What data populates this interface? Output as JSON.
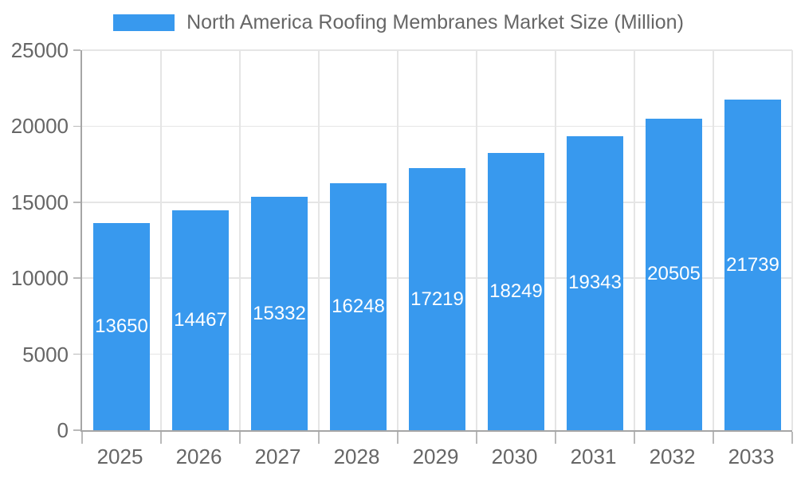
{
  "chart_data": {
    "type": "bar",
    "title": "North America Roofing Membranes Market Size (Million)",
    "categories": [
      "2025",
      "2026",
      "2027",
      "2028",
      "2029",
      "2030",
      "2031",
      "2032",
      "2033"
    ],
    "values": [
      13650,
      14467,
      15332,
      16248,
      17219,
      18249,
      19343,
      20505,
      21739
    ],
    "xlabel": "",
    "ylabel": "",
    "ylim": [
      0,
      25000
    ],
    "yticks": [
      0,
      5000,
      10000,
      15000,
      20000,
      25000
    ],
    "grid": true,
    "legend_position": "top",
    "bar_labels_inside": true
  },
  "colors": {
    "accent": "#3899EE",
    "grid": "#E5E5E5",
    "axis": "#A6A6A6",
    "tick": "#B9B9B9",
    "text": "#666666",
    "bar_label": "#FFFFFF",
    "background": "#FFFFFF"
  }
}
